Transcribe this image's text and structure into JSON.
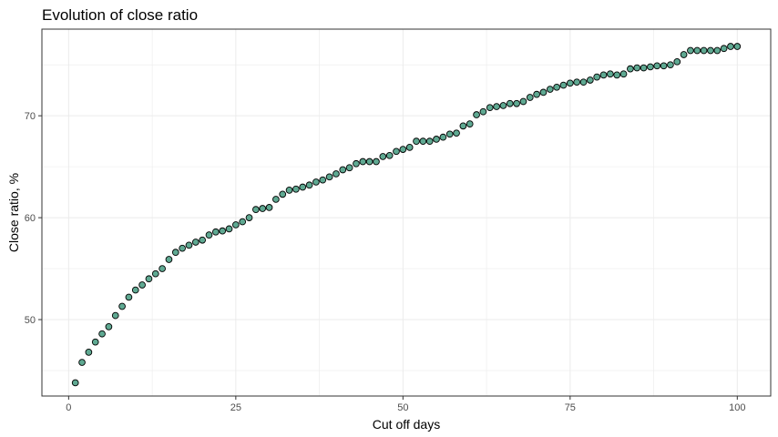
{
  "chart_data": {
    "type": "scatter",
    "title": "Evolution of close ratio",
    "xlabel": "Cut off days",
    "ylabel": "Close ratio, %",
    "xlim": [
      -4,
      105
    ],
    "ylim": [
      42.5,
      78.5
    ],
    "x_ticks": [
      0,
      25,
      50,
      75,
      100
    ],
    "y_ticks": [
      50,
      60,
      70
    ],
    "grid": true,
    "marker_fill": "#5fa992",
    "marker_stroke": "#000000",
    "x": [
      1,
      2,
      3,
      4,
      5,
      6,
      7,
      8,
      9,
      10,
      11,
      12,
      13,
      14,
      15,
      16,
      17,
      18,
      19,
      20,
      21,
      22,
      23,
      24,
      25,
      26,
      27,
      28,
      29,
      30,
      31,
      32,
      33,
      34,
      35,
      36,
      37,
      38,
      39,
      40,
      41,
      42,
      43,
      44,
      45,
      46,
      47,
      48,
      49,
      50,
      51,
      52,
      53,
      54,
      55,
      56,
      57,
      58,
      59,
      60,
      61,
      62,
      63,
      64,
      65,
      66,
      67,
      68,
      69,
      70,
      71,
      72,
      73,
      74,
      75,
      76,
      77,
      78,
      79,
      80,
      81,
      82,
      83,
      84,
      85,
      86,
      87,
      88,
      89,
      90,
      91,
      92,
      93,
      94,
      95,
      96,
      97,
      98,
      99,
      100
    ],
    "y": [
      43.8,
      45.8,
      46.8,
      47.8,
      48.6,
      49.3,
      50.4,
      51.3,
      52.2,
      52.9,
      53.4,
      54.0,
      54.5,
      55.0,
      55.9,
      56.6,
      57.0,
      57.3,
      57.6,
      57.8,
      58.3,
      58.6,
      58.7,
      58.9,
      59.3,
      59.6,
      60.0,
      60.8,
      60.9,
      61.0,
      61.8,
      62.3,
      62.7,
      62.8,
      63.0,
      63.2,
      63.5,
      63.7,
      64.0,
      64.3,
      64.7,
      64.9,
      65.3,
      65.5,
      65.5,
      65.5,
      66.0,
      66.1,
      66.5,
      66.7,
      66.9,
      67.5,
      67.5,
      67.5,
      67.7,
      67.9,
      68.2,
      68.3,
      69.0,
      69.2,
      70.1,
      70.4,
      70.8,
      70.9,
      71.0,
      71.2,
      71.2,
      71.4,
      71.8,
      72.1,
      72.3,
      72.6,
      72.8,
      73.0,
      73.2,
      73.3,
      73.3,
      73.5,
      73.8,
      74.0,
      74.1,
      74.0,
      74.1,
      74.6,
      74.7,
      74.7,
      74.8,
      74.9,
      74.9,
      75.0,
      75.3,
      76.0,
      76.4,
      76.4,
      76.4,
      76.4,
      76.4,
      76.6,
      76.8,
      76.8
    ]
  }
}
